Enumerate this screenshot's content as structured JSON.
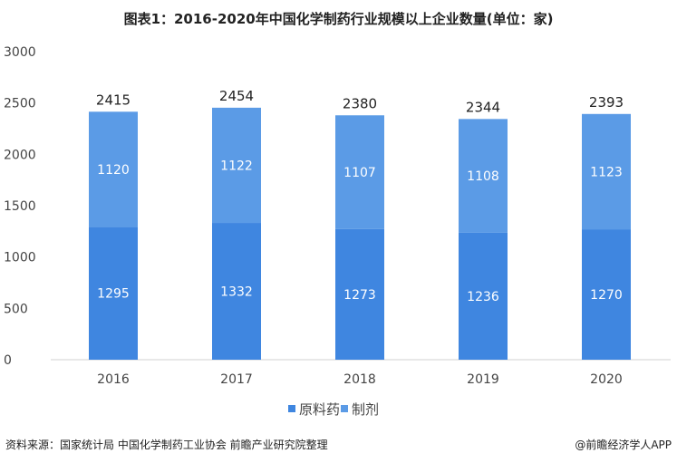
{
  "title": "图表1：2016-2020年中国化学制药行业规模以上企业数量(单位：家)",
  "source": "资料来源：国家统计局 中国化学制药工业协会 前瞻产业研究院整理",
  "credit": "@前瞻经济学人APP",
  "chart_data": {
    "type": "bar",
    "stacked": true,
    "title": "图表1：2016-2020年中国化学制药行业规模以上企业数量(单位：家)",
    "categories": [
      "2016",
      "2017",
      "2018",
      "2019",
      "2020"
    ],
    "series": [
      {
        "name": "原料药",
        "values": [
          1295,
          1332,
          1273,
          1236,
          1270
        ],
        "color": "#3f86e0"
      },
      {
        "name": "制剂",
        "values": [
          1120,
          1122,
          1107,
          1108,
          1123
        ],
        "color": "#5b9be6"
      }
    ],
    "totals": [
      2415,
      2454,
      2380,
      2344,
      2393
    ],
    "yticks": [
      0,
      500,
      1000,
      1500,
      2000,
      2500,
      3000
    ],
    "ylim": [
      0,
      3000
    ],
    "grid": false,
    "legend": "bottom"
  }
}
